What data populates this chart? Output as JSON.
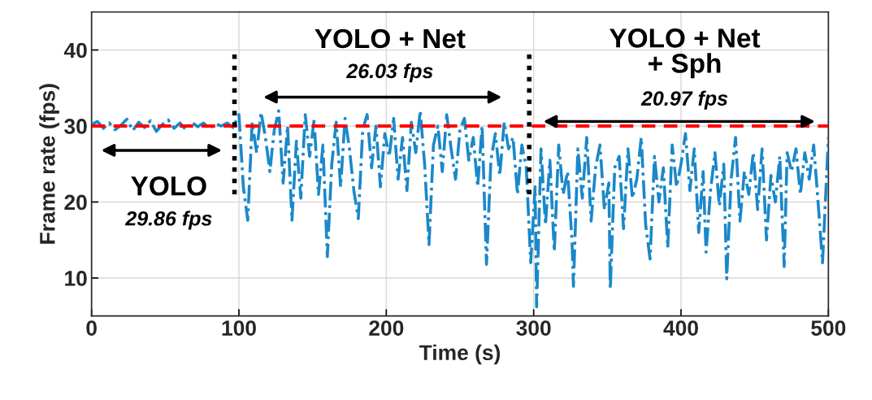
{
  "chart_data": {
    "type": "line",
    "xlabel": "Time (s)",
    "ylabel": "Frame rate (fps)",
    "xlim": [
      0,
      500
    ],
    "ylim": [
      5,
      45
    ],
    "xticks": [
      0,
      100,
      200,
      300,
      400,
      500
    ],
    "yticks": [
      10,
      20,
      30,
      40
    ],
    "grid": true,
    "line_style": "dashed",
    "series": [
      {
        "color": "#1a88c9",
        "x": [
          0,
          4,
          8,
          12,
          16,
          20,
          24,
          28,
          32,
          36,
          40,
          44,
          48,
          52,
          56,
          60,
          64,
          68,
          72,
          76,
          80,
          84,
          88,
          92,
          96,
          100,
          103,
          106,
          109,
          112,
          115,
          118,
          121,
          124,
          127,
          130,
          133,
          136,
          139,
          142,
          145,
          148,
          151,
          154,
          157,
          160,
          163,
          166,
          169,
          172,
          175,
          178,
          181,
          184,
          187,
          190,
          193,
          196,
          199,
          202,
          205,
          208,
          211,
          214,
          217,
          220,
          223,
          226,
          229,
          232,
          235,
          238,
          241,
          244,
          247,
          250,
          253,
          256,
          259,
          262,
          265,
          268,
          271,
          274,
          277,
          280,
          283,
          286,
          289,
          292,
          295,
          298,
          301,
          302,
          305,
          308,
          311,
          314,
          317,
          320,
          323,
          326,
          327,
          330,
          333,
          336,
          339,
          342,
          345,
          348,
          351,
          352,
          355,
          358,
          361,
          364,
          367,
          370,
          373,
          376,
          379,
          382,
          385,
          388,
          391,
          394,
          397,
          400,
          403,
          406,
          409,
          412,
          415,
          417,
          420,
          423,
          426,
          429,
          431,
          434,
          437,
          440,
          443,
          446,
          449,
          452,
          455,
          458,
          461,
          464,
          467,
          470,
          472,
          475,
          478,
          481,
          484,
          487,
          490,
          493,
          496,
          500
        ],
        "values": [
          30.2,
          30.6,
          29.7,
          30.4,
          29.5,
          30.1,
          30.9,
          29.4,
          30.5,
          29.8,
          30.7,
          29.3,
          30.2,
          30.8,
          29.7,
          30.4,
          29.5,
          30.5,
          29.9,
          30.4,
          29.6,
          30.3,
          30.0,
          30.4,
          29.8,
          31.5,
          22.0,
          17.6,
          30.5,
          26.5,
          31.8,
          28.5,
          24.0,
          29.5,
          32.0,
          22.5,
          30.0,
          17.6,
          28.0,
          20.5,
          31.5,
          26.0,
          30.8,
          21.0,
          27.5,
          12.8,
          25.0,
          30.5,
          22.0,
          31.0,
          27.0,
          21.5,
          17.8,
          29.5,
          31.5,
          24.5,
          30.0,
          22.0,
          29.0,
          26.0,
          31.0,
          23.0,
          28.5,
          21.5,
          30.5,
          26.5,
          32.0,
          25.0,
          14.4,
          27.5,
          30.0,
          24.0,
          31.5,
          27.0,
          23.0,
          29.5,
          31.0,
          25.5,
          28.5,
          22.0,
          30.0,
          11.8,
          25.5,
          29.0,
          23.5,
          30.5,
          27.0,
          28.5,
          21.0,
          27.5,
          24.5,
          12.0,
          22.0,
          6.2,
          27.0,
          17.0,
          25.5,
          13.5,
          27.5,
          21.0,
          24.0,
          15.0,
          8.9,
          27.0,
          20.5,
          28.5,
          17.5,
          24.5,
          27.5,
          19.0,
          22.5,
          8.6,
          24.5,
          26.0,
          16.5,
          27.0,
          20.5,
          23.0,
          28.5,
          17.0,
          12.5,
          26.0,
          20.0,
          24.5,
          14.0,
          27.5,
          22.0,
          25.0,
          29.0,
          21.5,
          27.0,
          16.0,
          24.0,
          13.4,
          21.5,
          26.5,
          19.5,
          25.0,
          9.9,
          23.0,
          28.5,
          17.5,
          24.0,
          21.0,
          26.5,
          19.0,
          27.0,
          15.0,
          23.5,
          20.0,
          26.0,
          11.5,
          26.5,
          24.0,
          27.0,
          21.0,
          26.5,
          23.0,
          27.5,
          20.0,
          12.0,
          28.5
        ]
      }
    ],
    "ref_lines": [
      {
        "axis": "y",
        "value": 30,
        "color": "#ff0000",
        "line_style": "dashed"
      },
      {
        "axis": "x",
        "value": 97,
        "color": "#000000",
        "line_style": "dotted"
      },
      {
        "axis": "x",
        "value": 297,
        "color": "#000000",
        "line_style": "dotted"
      }
    ],
    "annotations": [
      "YOLO",
      "29.86 fps",
      "YOLO + Net",
      "26.03 fps",
      "YOLO + Net\n+ Sph",
      "20.97 fps"
    ]
  }
}
